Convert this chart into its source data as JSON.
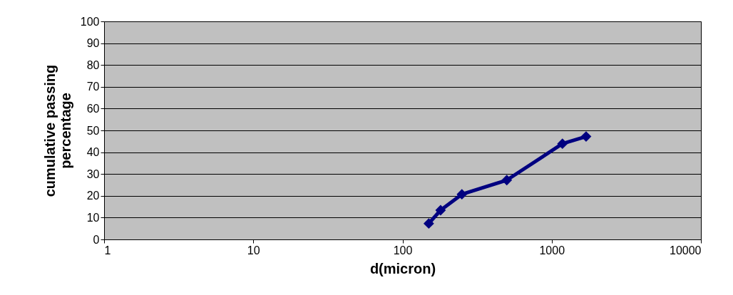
{
  "chart_data": {
    "type": "line",
    "xlabel": "d(micron)",
    "ylabel": "cumulative passing percentage",
    "log": "x",
    "x": [
      150,
      180,
      250,
      500,
      1180,
      1700
    ],
    "series": [
      {
        "color": "#000080",
        "values": [
          7.3,
          13.4,
          20.7,
          27.2,
          43.9,
          47.2
        ]
      }
    ],
    "xlim": [
      1,
      10000
    ],
    "xticks": [
      1,
      10,
      100,
      1000,
      10000
    ],
    "ylim": [
      0,
      100
    ],
    "yticks": [
      0,
      10,
      20,
      30,
      40,
      50,
      60,
      70,
      80,
      90,
      100
    ],
    "grid": "y",
    "marker": "diamond",
    "line_style": "solid"
  }
}
